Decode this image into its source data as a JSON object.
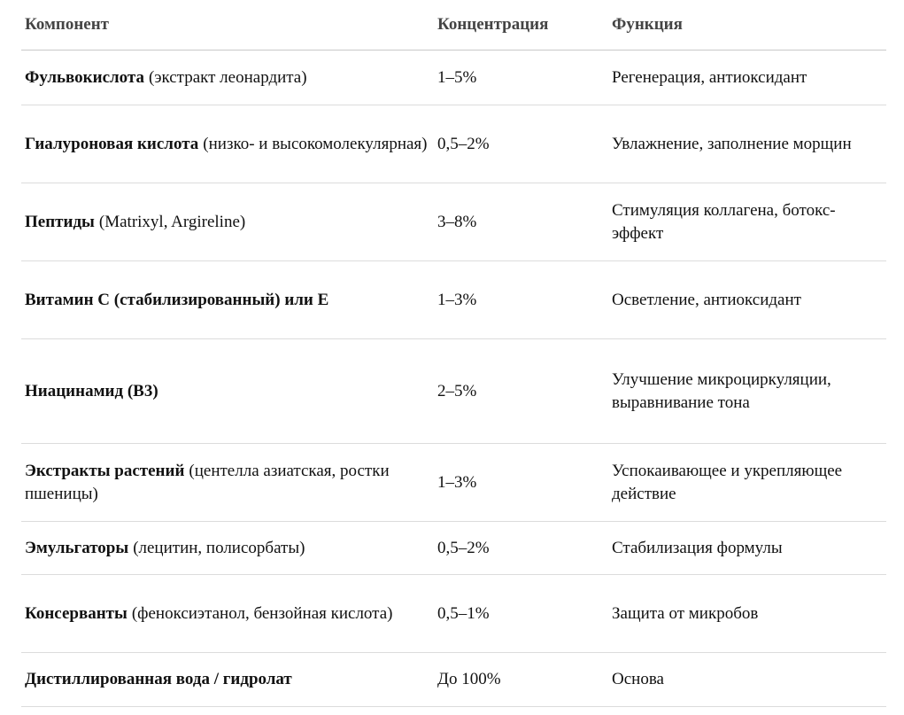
{
  "table": {
    "header": [
      "Компонент",
      "Концентрация",
      "Функция"
    ],
    "rows": [
      {
        "name": "Фульвокислота",
        "note": "(экстракт леонардита)",
        "concentration": "1–5%",
        "function": "Регенерация, антиоксидант"
      },
      {
        "name": "Гиалуроновая кислота",
        "note": "(низко- и высокомолекулярная)",
        "concentration": "0,5–2%",
        "function": "Увлажнение, заполнение морщин"
      },
      {
        "name": "Пептиды",
        "note": "(Matrixyl, Argireline)",
        "concentration": "3–8%",
        "function": "Стимуляция коллагена, ботокс-эффект"
      },
      {
        "name": "Витамин C (стабилизированный) или E",
        "concentration": "1–3%",
        "function": "Осветление, антиоксидант"
      },
      {
        "name": "Ниацинамид (B3)",
        "concentration": "2–5%",
        "function": "Улучшение микроциркуляции, выравнивание тона"
      },
      {
        "name": "Экстракты растений",
        "note": "(центелла азиатская, ростки пшеницы)",
        "concentration": "1–3%",
        "function": "Успокаивающее и укрепляющее действие"
      },
      {
        "name": "Эмульгаторы",
        "note": "(лецитин, полисорбаты)",
        "concentration": "0,5–2%",
        "function": "Стабилизация формулы"
      },
      {
        "name": "Консерванты",
        "note": "(феноксиэтанол, бензойная кислота)",
        "concentration": "0,5–1%",
        "function": "Защита от микробов"
      },
      {
        "name": "Дистиллированная вода / гидролат",
        "concentration": "До 100%",
        "function": "Основа"
      }
    ]
  }
}
